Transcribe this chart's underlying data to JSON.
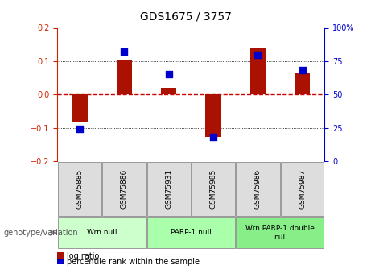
{
  "title": "GDS1675 / 3757",
  "samples": [
    "GSM75885",
    "GSM75886",
    "GSM75931",
    "GSM75985",
    "GSM75986",
    "GSM75987"
  ],
  "log_ratio": [
    -0.082,
    0.105,
    0.02,
    -0.127,
    0.14,
    0.065
  ],
  "percentile": [
    24,
    82,
    65,
    18,
    80,
    68
  ],
  "ylim_left": [
    -0.2,
    0.2
  ],
  "ylim_right": [
    0,
    100
  ],
  "yticks_left": [
    -0.2,
    -0.1,
    0.0,
    0.1,
    0.2
  ],
  "yticks_right": [
    0,
    25,
    50,
    75,
    100
  ],
  "ytick_labels_right": [
    "0",
    "25",
    "50",
    "75",
    "100%"
  ],
  "bar_color": "#aa1100",
  "dot_color": "#0000cc",
  "zero_line_color": "#cc0000",
  "grid_color": "#000000",
  "groups": [
    {
      "label": "Wrn null",
      "start": 0,
      "end": 2,
      "color": "#ccffcc"
    },
    {
      "label": "PARP-1 null",
      "start": 2,
      "end": 4,
      "color": "#aaffaa"
    },
    {
      "label": "Wrn PARP-1 double\nnull",
      "start": 4,
      "end": 6,
      "color": "#88ee88"
    }
  ],
  "bar_width": 0.35,
  "dot_size": 35,
  "legend_log_label": "log ratio",
  "legend_pct_label": "percentile rank within the sample",
  "genotype_label": "genotype/variation",
  "left_tick_color": "#cc2200",
  "right_tick_color": "#0000cc",
  "sample_box_color": "#dddddd",
  "title_fontsize": 10,
  "tick_labelsize": 7,
  "sample_fontsize": 6.5,
  "group_fontsize": 6.5,
  "legend_fontsize": 7,
  "genotype_fontsize": 7
}
